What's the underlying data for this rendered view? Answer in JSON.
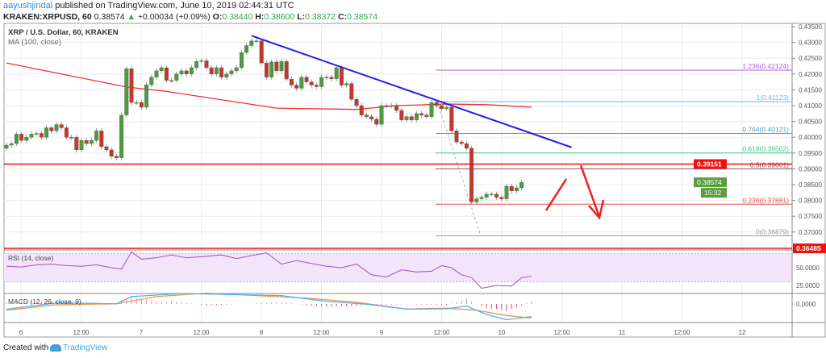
{
  "header": {
    "author": "aayushjindal",
    "published": "published on TradingView.com, June 10, 2019 02:44:31 UTC",
    "symbol": "KRAKEN:XRPUSD, 60",
    "last": "0.38574",
    "change": "+0.00034 (+0.09%)",
    "o_label": "O:",
    "o": "0.38440",
    "h_label": "H:",
    "h": "0.38600",
    "l_label": "L:",
    "l": "0.38372",
    "c_label": "C:",
    "c": "0.38574"
  },
  "footer": {
    "created_with": "Created with",
    "brand": "TradingView"
  },
  "colors": {
    "up": "#4e9a3f",
    "down": "#c0392b",
    "ma": "#f23030",
    "trend": "#1f1fe8",
    "rsi": "#a04fc0",
    "macd": "#4fb3f0",
    "signal": "#f0954f"
  },
  "chart_data": {
    "type": "candlestick",
    "title": "XRP / U.S. Dollar, 60, KRAKEN",
    "ma_label": "MA (100, close)",
    "ylim": [
      0.3625,
      0.4365
    ],
    "y_ticks": [
      "0.43500",
      "0.43000",
      "0.42500",
      "0.42000",
      "0.41500",
      "0.41000",
      "0.40500",
      "0.40000",
      "0.39500",
      "0.39000",
      "0.38500",
      "0.38000",
      "0.37500",
      "0.37000"
    ],
    "x_ticks": [
      "6",
      "12:00",
      "7",
      "12:00",
      "8",
      "12:00",
      "9",
      "12:00",
      "10",
      "12:00",
      "11",
      "12:00",
      "12"
    ],
    "first_open": 0.3965,
    "closes": [
      0.3975,
      0.398,
      0.401,
      0.399,
      0.4,
      0.401,
      0.4012,
      0.4,
      0.403,
      0.402,
      0.404,
      0.403,
      0.4,
      0.4,
      0.396,
      0.399,
      0.398,
      0.399,
      0.402,
      0.397,
      0.396,
      0.394,
      0.3935,
      0.407,
      0.4217,
      0.411,
      0.411,
      0.4095,
      0.4166,
      0.419,
      0.421,
      0.422,
      0.418,
      0.418,
      0.42,
      0.421,
      0.42,
      0.422,
      0.424,
      0.4242,
      0.422,
      0.42,
      0.422,
      0.419,
      0.42,
      0.421,
      0.422,
      0.4268,
      0.429,
      0.4305,
      0.4305,
      0.4235,
      0.419,
      0.4238,
      0.421,
      0.424,
      0.4184,
      0.4165,
      0.4155,
      0.419,
      0.4175,
      0.4165,
      0.416,
      0.419,
      0.419,
      0.4185,
      0.422,
      0.4165,
      0.417,
      0.412,
      0.41,
      0.407,
      0.4065,
      0.4057,
      0.4041,
      0.41,
      0.41,
      0.41,
      0.4085,
      0.4055,
      0.4065,
      0.4055,
      0.4075,
      0.407,
      0.4065,
      0.411,
      0.41,
      0.409,
      0.4095,
      0.402,
      0.3985,
      0.398,
      0.3965,
      0.3795,
      0.3805,
      0.381,
      0.382,
      0.382,
      0.381,
      0.3805,
      0.3845,
      0.383,
      0.384,
      0.3857
    ],
    "ma100": [
      [
        0,
        0.4235
      ],
      [
        24,
        0.4159
      ],
      [
        32,
        0.4145
      ],
      [
        54,
        0.4092
      ],
      [
        62,
        0.409
      ],
      [
        70,
        0.4088
      ],
      [
        78,
        0.41
      ],
      [
        88,
        0.4105
      ],
      [
        96,
        0.4103
      ],
      [
        105,
        0.4095
      ]
    ],
    "horizontal_levels": [
      {
        "label": "0.39151",
        "value": 0.39151,
        "color": "#f01010"
      },
      {
        "label": "0.36485",
        "value": 0.36485,
        "color": "#f01010"
      }
    ],
    "last_price_label": "0.38574",
    "countdown": "15:32",
    "fib_levels": [
      {
        "label": "1.236(0.42124)",
        "value": 0.42124,
        "color": "#b05fd6"
      },
      {
        "label": "1(0.41123)",
        "value": 0.41123,
        "color": "#6ab8e0"
      },
      {
        "label": "0.764(0.40121)",
        "value": 0.40121,
        "color": "#4aa0d8"
      },
      {
        "label": "0.618(0.39502)",
        "value": 0.39502,
        "color": "#3cc48a"
      },
      {
        "label": "0.5(0.39001)",
        "value": 0.39001,
        "color": "#8a5060"
      },
      {
        "label": "0.236(0.37881)",
        "value": 0.37881,
        "color": "#e05050"
      },
      {
        "label": "0(0.36879)",
        "value": 0.36879,
        "color": "#999999"
      }
    ],
    "trendline": [
      [
        49,
        0.4321
      ],
      [
        113,
        0.3968
      ]
    ],
    "rsi": {
      "label": "RSI (14, close)",
      "ticks": [
        "50.0000",
        "25.0000"
      ],
      "bands": [
        70,
        30
      ],
      "values": [
        [
          0,
          52
        ],
        [
          3,
          51
        ],
        [
          6,
          54
        ],
        [
          9,
          55
        ],
        [
          12,
          53
        ],
        [
          15,
          52
        ],
        [
          18,
          54
        ],
        [
          21,
          50
        ],
        [
          23,
          48
        ],
        [
          25,
          72
        ],
        [
          27,
          62
        ],
        [
          30,
          64
        ],
        [
          33,
          68
        ],
        [
          36,
          64
        ],
        [
          40,
          66
        ],
        [
          43,
          68
        ],
        [
          46,
          63
        ],
        [
          49,
          67
        ],
        [
          52,
          71
        ],
        [
          55,
          55
        ],
        [
          58,
          60
        ],
        [
          61,
          56
        ],
        [
          64,
          52
        ],
        [
          67,
          50
        ],
        [
          70,
          55
        ],
        [
          73,
          40
        ],
        [
          76,
          37
        ],
        [
          79,
          47
        ],
        [
          82,
          44
        ],
        [
          85,
          45
        ],
        [
          87,
          53
        ],
        [
          89,
          50
        ],
        [
          91,
          40
        ],
        [
          93,
          36
        ],
        [
          95,
          21
        ],
        [
          98,
          25
        ],
        [
          101,
          24
        ],
        [
          103,
          36
        ],
        [
          105,
          38
        ]
      ]
    },
    "macd": {
      "label": "MACD (12, 26, close, 9)",
      "ticks": [
        "0.0000"
      ],
      "macd": [
        [
          0,
          -0.0025
        ],
        [
          10,
          0.0005
        ],
        [
          22,
          0.0001
        ],
        [
          25,
          0.0035
        ],
        [
          35,
          0.005
        ],
        [
          45,
          0.0045
        ],
        [
          55,
          0.004
        ],
        [
          64,
          0.0012
        ],
        [
          72,
          -0.0001
        ],
        [
          80,
          -0.0025
        ],
        [
          88,
          -0.0023
        ],
        [
          92,
          -0.001
        ],
        [
          96,
          -0.005
        ],
        [
          100,
          -0.0075
        ],
        [
          105,
          -0.006
        ]
      ],
      "signal": [
        [
          0,
          -0.003
        ],
        [
          10,
          -0.0004
        ],
        [
          22,
          0.0001
        ],
        [
          30,
          0.0035
        ],
        [
          40,
          0.0052
        ],
        [
          50,
          0.004
        ],
        [
          60,
          0.0028
        ],
        [
          70,
          0.0008
        ],
        [
          80,
          -0.0024
        ],
        [
          88,
          -0.002
        ],
        [
          94,
          -0.003
        ],
        [
          100,
          -0.0055
        ],
        [
          105,
          -0.0068
        ]
      ]
    }
  }
}
